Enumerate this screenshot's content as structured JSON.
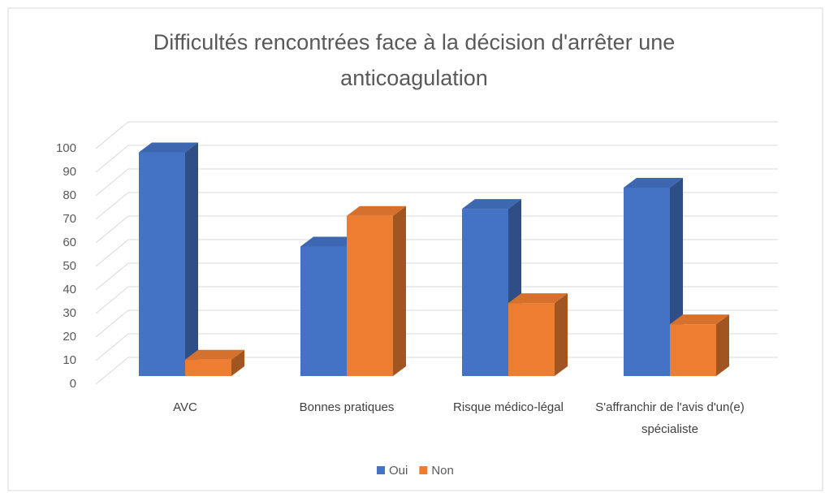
{
  "chart_data": {
    "type": "bar3d",
    "title": "Difficultés rencontrées  face à la décision d'arrêter une anticoagulation",
    "categories": [
      "AVC",
      "Bonnes pratiques",
      "Risque médico-légal",
      "S'affranchir de l'avis d'un(e) spécialiste"
    ],
    "series": [
      {
        "name": "Oui",
        "color": "#4472c4",
        "values": [
          95,
          55,
          71,
          80
        ]
      },
      {
        "name": "Non",
        "color": "#ed7d31",
        "values": [
          7,
          68,
          31,
          22
        ]
      }
    ],
    "ylim": [
      0,
      100
    ],
    "yticks": [
      0,
      10,
      20,
      30,
      40,
      50,
      60,
      70,
      80,
      90,
      100
    ],
    "grid": true,
    "legend": "bottom"
  }
}
